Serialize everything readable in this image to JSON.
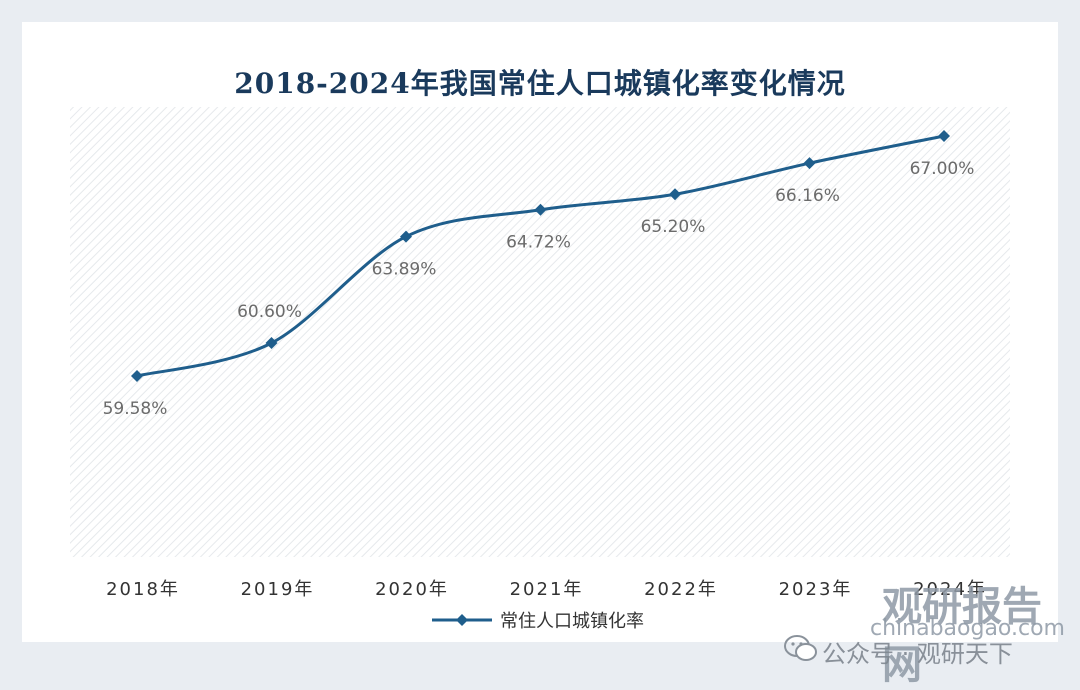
{
  "chart_data": {
    "type": "line",
    "title": "2018-2024年我国常住人口城镇化率变化情况",
    "categories": [
      "2018年",
      "2019年",
      "2020年",
      "2021年",
      "2022年",
      "2023年",
      "2024年"
    ],
    "series": [
      {
        "name": "常住人口城镇化率",
        "values": [
          59.58,
          60.6,
          63.89,
          64.72,
          65.2,
          66.16,
          67.0
        ],
        "labels": [
          "59.58%",
          "60.60%",
          "63.89%",
          "64.72%",
          "65.20%",
          "66.16%",
          "67.00%"
        ]
      }
    ],
    "grid": false,
    "smooth": true,
    "legend_position": "bottom",
    "colors": {
      "line": "#1f5e8c",
      "title": "#1a3a5c",
      "label": "#6b6b6b"
    }
  },
  "watermark": {
    "logo_text": "观研报告网",
    "domain": "chinabaogao.com",
    "account": "公众号 · 观研天下"
  }
}
